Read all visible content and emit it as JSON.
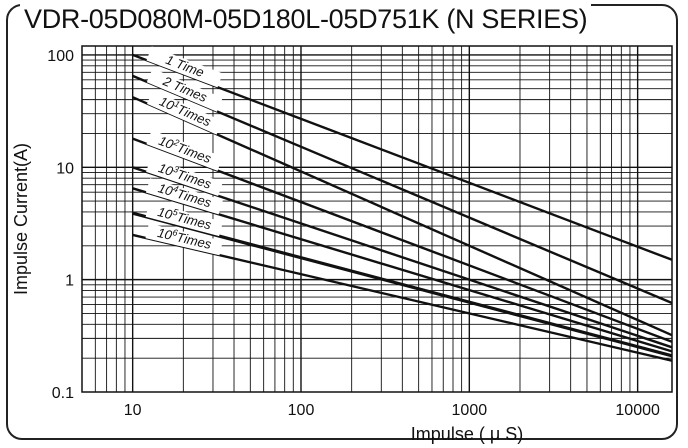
{
  "chart_data": {
    "type": "line",
    "title": "VDR-05D080M-05D180L-05D751K (N SERIES)",
    "xlabel": "Impulse ( μ S)",
    "ylabel": "Impulse Current(A)",
    "x_scale": "log",
    "y_scale": "log",
    "xlim": [
      5,
      16000
    ],
    "ylim": [
      0.1,
      120
    ],
    "x_ticks": [
      "10",
      "100",
      "1000",
      "10000"
    ],
    "y_ticks": [
      "100",
      "10",
      "1",
      "0.1"
    ],
    "grid": true,
    "series": [
      {
        "label": "1 Time",
        "label_parts": [
          "1 Time"
        ],
        "x": [
          10,
          16000
        ],
        "y": [
          100,
          1.5
        ]
      },
      {
        "label": "2 Times",
        "label_parts": [
          "2 Times"
        ],
        "x": [
          10,
          16000
        ],
        "y": [
          65,
          0.62
        ]
      },
      {
        "label": "10^1 Times",
        "label_parts": [
          "10",
          "1",
          "Times"
        ],
        "x": [
          10,
          16000
        ],
        "y": [
          42,
          0.32
        ]
      },
      {
        "label": "10^2 Times",
        "label_parts": [
          "10",
          "2",
          "Times"
        ],
        "x": [
          10,
          16000
        ],
        "y": [
          18,
          0.28
        ]
      },
      {
        "label": "10^3 Times",
        "label_parts": [
          "10",
          "3",
          "Times"
        ],
        "x": [
          10,
          16000
        ],
        "y": [
          10,
          0.25
        ]
      },
      {
        "label": "10^4 Times",
        "label_parts": [
          "10",
          "4",
          "Times"
        ],
        "x": [
          10,
          16000
        ],
        "y": [
          6.5,
          0.23
        ]
      },
      {
        "label": "10^5 Times",
        "label_parts": [
          "10",
          "5",
          "Times"
        ],
        "x": [
          10,
          16000
        ],
        "y": [
          3.9,
          0.21
        ],
        "bold": true
      },
      {
        "label": "10^6 Times",
        "label_parts": [
          "10",
          "6",
          "Times"
        ],
        "x": [
          10,
          16000
        ],
        "y": [
          2.5,
          0.19
        ]
      }
    ]
  }
}
